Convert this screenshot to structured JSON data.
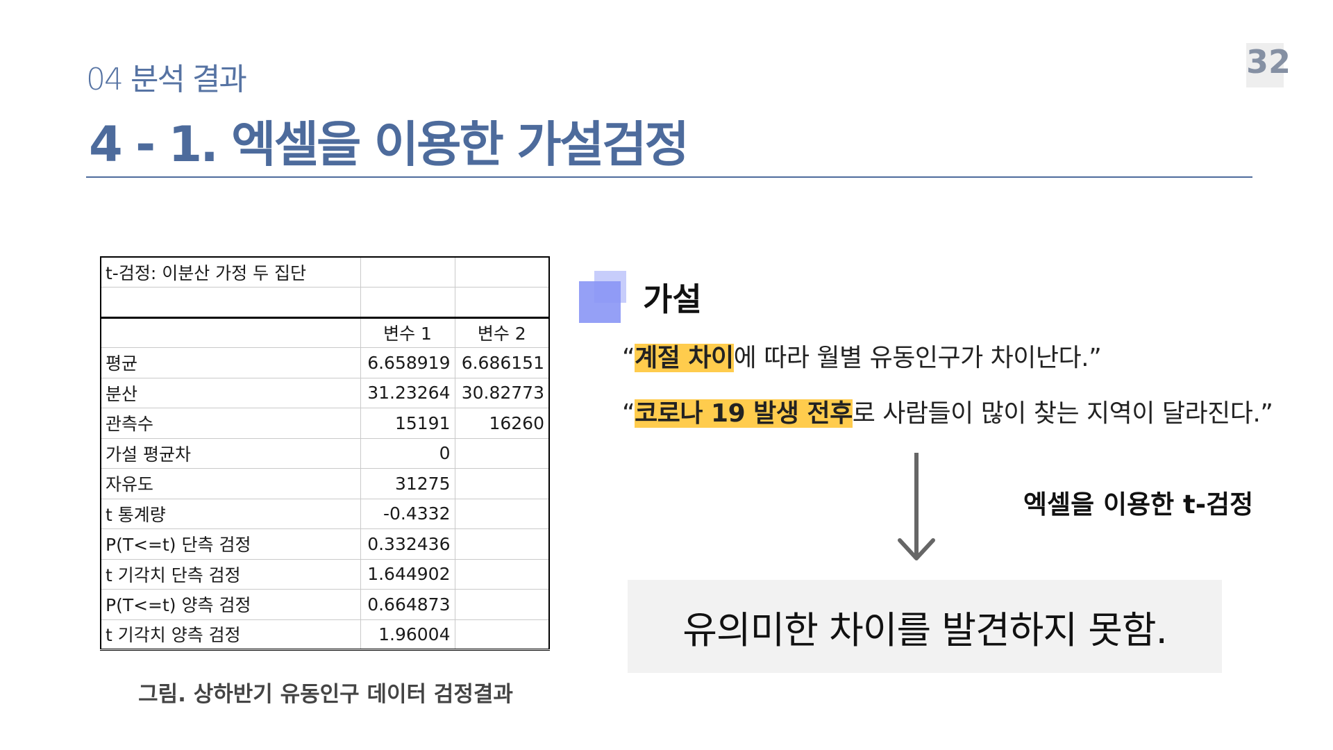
{
  "header": {
    "section_label": "04 분석 결과",
    "title": "4 - 1. 엑셀을 이용한 가설검정",
    "page_number": "32"
  },
  "excel": {
    "title": "t-검정: 이분산 가정 두 집단",
    "columns": [
      "",
      "변수 1",
      "변수 2"
    ],
    "rows": [
      {
        "label": "평균",
        "v1": "6.658919",
        "v2": "6.686151"
      },
      {
        "label": "분산",
        "v1": "31.23264",
        "v2": "30.82773"
      },
      {
        "label": "관측수",
        "v1": "15191",
        "v2": "16260"
      },
      {
        "label": "가설 평균차",
        "v1": "0",
        "v2": ""
      },
      {
        "label": "자유도",
        "v1": "31275",
        "v2": ""
      },
      {
        "label": "t 통계량",
        "v1": "-0.4332",
        "v2": ""
      },
      {
        "label": "P(T<=t) 단측 검정",
        "v1": "0.332436",
        "v2": ""
      },
      {
        "label": "t 기각치 단측 검정",
        "v1": "1.644902",
        "v2": ""
      },
      {
        "label": "P(T<=t) 양측 검정",
        "v1": "0.664873",
        "v2": ""
      },
      {
        "label": "t 기각치 양측 검정",
        "v1": "1.96004",
        "v2": ""
      }
    ],
    "caption": "그림. 상하반기 유동인구 데이터 검정결과"
  },
  "hypothesis": {
    "heading": "가설",
    "line1": {
      "open": "“",
      "highlight": "계절 차이",
      "rest": "에 따라 월별 유동인구가 차이난다.”"
    },
    "line2": {
      "open": "“",
      "highlight": "코로나 19 발생 전후",
      "rest": "로 사람들이 많이 찾는 지역이 달라진다.”"
    },
    "method": "엑셀을 이용한 t-검정",
    "result": "유의미한 차이를 발견하지 못함."
  },
  "colors": {
    "accent": "#4d6b9c",
    "highlight": "#ffcc4d",
    "marker_front": "#8a96f5",
    "marker_back": "#c7cdfb"
  }
}
